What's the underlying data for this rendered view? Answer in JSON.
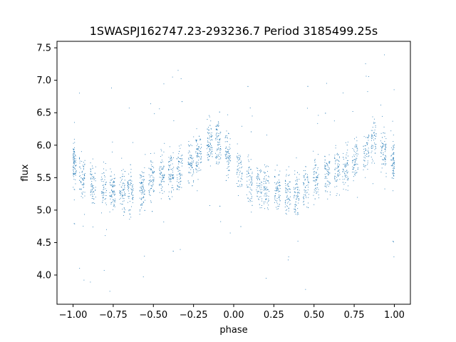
{
  "chart_data": {
    "type": "scatter",
    "title": "1SWASPJ162747.23-293236.7 Period 3185499.25s",
    "xlabel": "phase",
    "ylabel": "flux",
    "xlim": [
      -1.1,
      1.1
    ],
    "ylim": [
      3.55,
      7.6
    ],
    "xticks": [
      -1.0,
      -0.75,
      -0.5,
      -0.25,
      0.0,
      0.25,
      0.5,
      0.75,
      1.0
    ],
    "xtick_labels": [
      "−1.00",
      "−0.75",
      "−0.50",
      "−0.25",
      "0.00",
      "0.25",
      "0.50",
      "0.75",
      "1.00"
    ],
    "yticks": [
      4.0,
      4.5,
      5.0,
      5.5,
      6.0,
      6.5,
      7.0,
      7.5
    ],
    "ytick_labels": [
      "4.0",
      "4.5",
      "5.0",
      "5.5",
      "6.0",
      "6.5",
      "7.0",
      "7.5"
    ],
    "grid": false,
    "marker_color": "#1f77b4",
    "description_of_distribution": {
      "phase_folded_repeat": 1.0,
      "profile": [
        {
          "phase": -1.0,
          "median_flux": 5.75
        },
        {
          "phase": -0.95,
          "median_flux": 5.55
        },
        {
          "phase": -0.85,
          "median_flux": 5.35
        },
        {
          "phase": -0.75,
          "median_flux": 5.3
        },
        {
          "phase": -0.6,
          "median_flux": 5.25
        },
        {
          "phase": -0.5,
          "median_flux": 5.5
        },
        {
          "phase": -0.35,
          "median_flux": 5.6
        },
        {
          "phase": -0.25,
          "median_flux": 5.75
        },
        {
          "phase": -0.12,
          "median_flux": 6.1
        },
        {
          "phase": 0.0,
          "median_flux": 5.75
        },
        {
          "phase": 0.05,
          "median_flux": 5.55
        },
        {
          "phase": 0.15,
          "median_flux": 5.35
        },
        {
          "phase": 0.25,
          "median_flux": 5.3
        },
        {
          "phase": 0.4,
          "median_flux": 5.25
        },
        {
          "phase": 0.5,
          "median_flux": 5.5
        },
        {
          "phase": 0.65,
          "median_flux": 5.6
        },
        {
          "phase": 0.75,
          "median_flux": 5.75
        },
        {
          "phase": 0.88,
          "median_flux": 6.1
        },
        {
          "phase": 1.0,
          "median_flux": 5.75
        }
      ]
    }
  }
}
